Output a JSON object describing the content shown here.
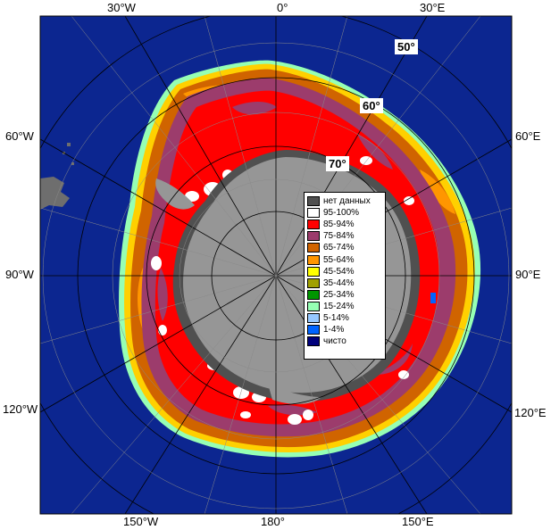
{
  "longitude_labels": {
    "top": [
      "30°W",
      "0°",
      "30°E"
    ],
    "left": [
      "60°W",
      "90°W",
      "120°W"
    ],
    "right": [
      "60°E",
      "90°E",
      "120°E"
    ],
    "bottom": [
      "150°W",
      "180°",
      "150°E"
    ]
  },
  "latitude_labels": [
    "50°",
    "60°",
    "70°"
  ],
  "legend": [
    {
      "label": "нет данных",
      "color": "#505050"
    },
    {
      "label": "95-100%",
      "color": "#ffffff"
    },
    {
      "label": "85-94%",
      "color": "#ff0000"
    },
    {
      "label": "75-84%",
      "color": "#9c3c6c"
    },
    {
      "label": "65-74%",
      "color": "#d06400"
    },
    {
      "label": "55-64%",
      "color": "#ff9600"
    },
    {
      "label": "45-54%",
      "color": "#ffff00"
    },
    {
      "label": "35-44%",
      "color": "#a0a000"
    },
    {
      "label": "25-34%",
      "color": "#009600"
    },
    {
      "label": "15-24%",
      "color": "#96ffb4"
    },
    {
      "label": "5-14%",
      "color": "#96c8ff"
    },
    {
      "label": "1-4%",
      "color": "#0064ff"
    },
    {
      "label": "чисто",
      "color": "#00007c"
    }
  ],
  "colors": {
    "ocean": "#0c2690",
    "land": "#969696",
    "no_data": "#505050"
  }
}
